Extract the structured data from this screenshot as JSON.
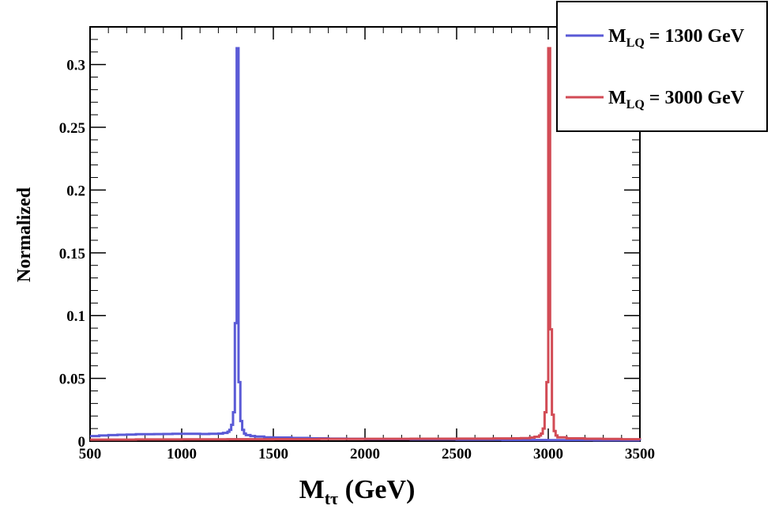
{
  "chart_data": {
    "type": "line",
    "style": "step-histogram",
    "xlabel": {
      "main": "M",
      "sub": "tτ",
      "unit": " (GeV)"
    },
    "ylabel": "Normalized",
    "xlim": [
      500,
      3500
    ],
    "ylim": [
      0,
      0.33
    ],
    "xticks": [
      500,
      1000,
      1500,
      2000,
      2500,
      3000,
      3500
    ],
    "xtick_labels": [
      "500",
      "1000",
      "1500",
      "2000",
      "2500",
      "3000",
      "3500"
    ],
    "yticks": [
      0,
      0.05,
      0.1,
      0.15,
      0.2,
      0.25,
      0.3
    ],
    "ytick_labels": [
      "0",
      "0.05",
      "0.1",
      "0.15",
      "0.2",
      "0.25",
      "0.3"
    ],
    "legend_position": "top-right",
    "series": [
      {
        "name": "M_LQ = 1300 GeV",
        "legend": {
          "main": "M",
          "sub": "LQ",
          "rest": " = 1300 GeV"
        },
        "color": "#5a5ad6",
        "x": [
          500,
          550,
          600,
          650,
          700,
          750,
          800,
          850,
          900,
          950,
          1000,
          1050,
          1100,
          1150,
          1200,
          1225,
          1250,
          1260,
          1270,
          1280,
          1290,
          1300,
          1310,
          1320,
          1330,
          1340,
          1350,
          1375,
          1400,
          1450,
          1500,
          1600,
          1700,
          1800,
          1900,
          2000,
          2250,
          2500,
          2750,
          3000,
          3250,
          3500
        ],
        "values": [
          0.004,
          0.0045,
          0.0048,
          0.005,
          0.0052,
          0.0055,
          0.0055,
          0.0056,
          0.0057,
          0.0058,
          0.0058,
          0.0058,
          0.0057,
          0.0058,
          0.006,
          0.0065,
          0.0075,
          0.009,
          0.013,
          0.023,
          0.094,
          0.313,
          0.047,
          0.016,
          0.009,
          0.006,
          0.0048,
          0.004,
          0.0036,
          0.003,
          0.0028,
          0.0025,
          0.0022,
          0.002,
          0.0018,
          0.0016,
          0.0013,
          0.0011,
          0.0009,
          0.0008,
          0.0006,
          0.0005
        ]
      },
      {
        "name": "M_LQ = 3000 GeV",
        "legend": {
          "main": "M",
          "sub": "LQ",
          "rest": " = 3000 GeV"
        },
        "color": "#d24b55",
        "x": [
          500,
          750,
          1000,
          1250,
          1500,
          1750,
          2000,
          2250,
          2500,
          2600,
          2700,
          2800,
          2850,
          2900,
          2925,
          2950,
          2960,
          2970,
          2980,
          2990,
          3000,
          3010,
          3020,
          3030,
          3040,
          3050,
          3100,
          3200,
          3300,
          3400,
          3500
        ],
        "values": [
          0.0012,
          0.0013,
          0.0014,
          0.0015,
          0.0016,
          0.0017,
          0.0018,
          0.0019,
          0.002,
          0.002,
          0.0021,
          0.0022,
          0.0024,
          0.0028,
          0.0035,
          0.0045,
          0.006,
          0.01,
          0.023,
          0.047,
          0.313,
          0.089,
          0.021,
          0.008,
          0.0045,
          0.003,
          0.0022,
          0.0019,
          0.0017,
          0.0015,
          0.0014
        ]
      }
    ]
  }
}
